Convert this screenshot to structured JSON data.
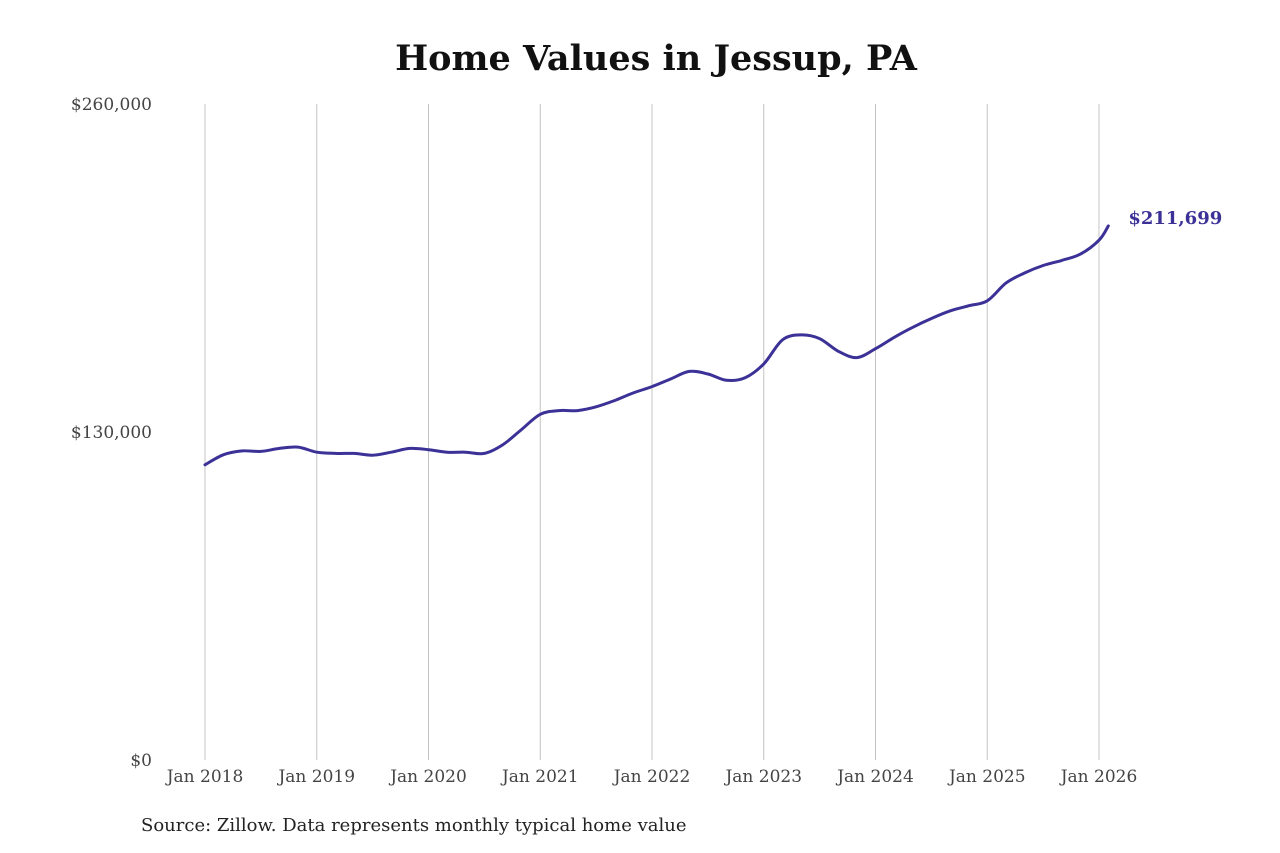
{
  "chart_data": {
    "type": "line",
    "title": "Home Values in Jessup, PA",
    "xlabel": "",
    "ylabel": "",
    "ylim": [
      0,
      260000
    ],
    "y_ticks": [
      {
        "value": 0,
        "label": "$0"
      },
      {
        "value": 130000,
        "label": "$130,000"
      },
      {
        "value": 260000,
        "label": "$260,000"
      }
    ],
    "x_range": [
      "2018-01",
      "2026-01"
    ],
    "x_ticks": [
      {
        "date": "2018-01",
        "label": "Jan 2018"
      },
      {
        "date": "2019-01",
        "label": "Jan 2019"
      },
      {
        "date": "2020-01",
        "label": "Jan 2020"
      },
      {
        "date": "2021-01",
        "label": "Jan 2021"
      },
      {
        "date": "2022-01",
        "label": "Jan 2022"
      },
      {
        "date": "2023-01",
        "label": "Jan 2023"
      },
      {
        "date": "2024-01",
        "label": "Jan 2024"
      },
      {
        "date": "2025-01",
        "label": "Jan 2025"
      },
      {
        "date": "2026-01",
        "label": "Jan 2026"
      }
    ],
    "grid": "vertical",
    "series": [
      {
        "color": "#3b3197",
        "end_label": "$211,699",
        "points": [
          [
            "2018-01",
            117000
          ],
          [
            "2018-03",
            121000
          ],
          [
            "2018-05",
            122500
          ],
          [
            "2018-07",
            122300
          ],
          [
            "2018-09",
            123500
          ],
          [
            "2018-11",
            124000
          ],
          [
            "2019-01",
            122000
          ],
          [
            "2019-03",
            121500
          ],
          [
            "2019-05",
            121500
          ],
          [
            "2019-07",
            120800
          ],
          [
            "2019-09",
            122000
          ],
          [
            "2019-11",
            123500
          ],
          [
            "2020-01",
            123000
          ],
          [
            "2020-03",
            122000
          ],
          [
            "2020-05",
            122000
          ],
          [
            "2020-07",
            121500
          ],
          [
            "2020-09",
            125000
          ],
          [
            "2020-11",
            131000
          ],
          [
            "2021-01",
            137000
          ],
          [
            "2021-03",
            138500
          ],
          [
            "2021-05",
            138500
          ],
          [
            "2021-07",
            140000
          ],
          [
            "2021-09",
            142500
          ],
          [
            "2021-11",
            145500
          ],
          [
            "2022-01",
            148000
          ],
          [
            "2022-03",
            151000
          ],
          [
            "2022-05",
            154000
          ],
          [
            "2022-07",
            153000
          ],
          [
            "2022-09",
            150500
          ],
          [
            "2022-11",
            151500
          ],
          [
            "2023-01",
            157000
          ],
          [
            "2023-03",
            166500
          ],
          [
            "2023-05",
            168500
          ],
          [
            "2023-07",
            167000
          ],
          [
            "2023-09",
            162000
          ],
          [
            "2023-11",
            159500
          ],
          [
            "2024-01",
            163000
          ],
          [
            "2024-03",
            167500
          ],
          [
            "2024-05",
            171500
          ],
          [
            "2024-07",
            175000
          ],
          [
            "2024-09",
            178000
          ],
          [
            "2024-11",
            180000
          ],
          [
            "2025-01",
            182000
          ],
          [
            "2025-03",
            189000
          ],
          [
            "2025-05",
            193000
          ],
          [
            "2025-07",
            196000
          ],
          [
            "2025-09",
            198000
          ],
          [
            "2025-11",
            200500
          ],
          [
            "2026-01",
            206000
          ],
          [
            "2026-02",
            211699
          ]
        ]
      }
    ]
  },
  "source": "Source: Zillow. Data represents monthly typical home value"
}
